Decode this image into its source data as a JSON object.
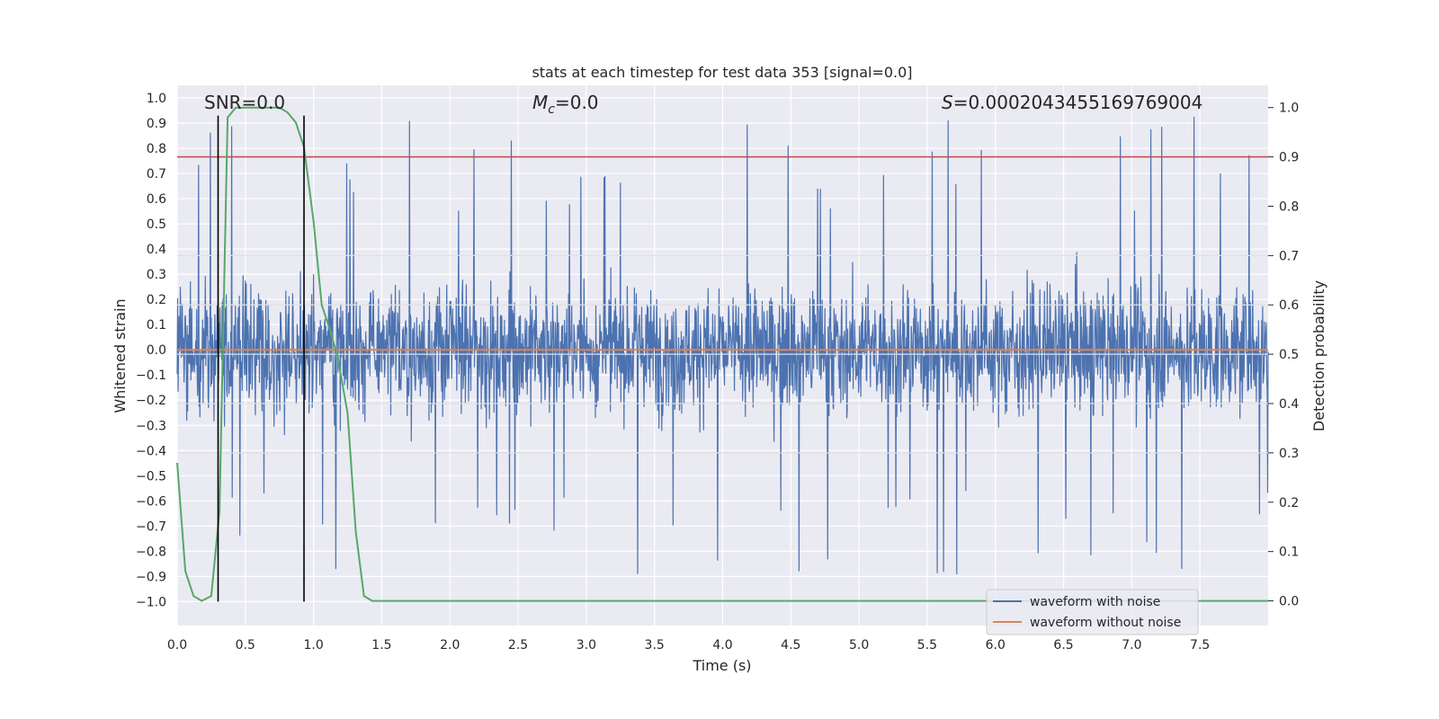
{
  "chart_data": {
    "type": "line",
    "title": "stats at each timestep for test data 353 [signal=0.0]",
    "xlabel": "Time (s)",
    "ylabel": "Whitened strain",
    "y2label": "Detection probability",
    "xlim": [
      0.0,
      8.0
    ],
    "ylim": [
      -1.095,
      1.05
    ],
    "y2lim": [
      -0.05,
      1.045
    ],
    "xticks": [
      "0.0",
      "0.5",
      "1.0",
      "1.5",
      "2.0",
      "2.5",
      "3.0",
      "3.5",
      "4.0",
      "4.5",
      "5.0",
      "5.5",
      "6.0",
      "6.5",
      "7.0",
      "7.5"
    ],
    "yticks": [
      "1.0",
      "0.9",
      "0.8",
      "0.7",
      "0.6",
      "0.5",
      "0.4",
      "0.3",
      "0.2",
      "0.1",
      "0.0",
      "-0.1",
      "-0.2",
      "-0.3",
      "-0.4",
      "-0.5",
      "-0.6",
      "-0.7",
      "-0.8",
      "-0.9",
      "-1.0"
    ],
    "y2ticks": [
      "1.0",
      "0.9",
      "0.8",
      "0.7",
      "0.6",
      "0.5",
      "0.4",
      "0.3",
      "0.2",
      "0.1",
      "0.0"
    ],
    "annotations": {
      "snr": "SNR=0.0",
      "mc_symbol": "M",
      "mc_sub": "c",
      "mc_value": "=0.0",
      "s_symbol": "S",
      "s_value": "=0.0002043455169769004"
    },
    "noise_envelope": {
      "typical_abs_max": 0.45,
      "max_peak": 0.94,
      "min_peak": -0.96
    },
    "series": [
      {
        "name": "waveform with noise",
        "color": "#4c72b0",
        "kind": "noise"
      },
      {
        "name": "waveform without noise",
        "color": "#dd8452",
        "x": [
          0.0,
          8.0
        ],
        "y": [
          0.0,
          0.0
        ]
      },
      {
        "color": "#55a868",
        "axis": "right",
        "x": [
          0.0,
          0.06,
          0.12,
          0.18,
          0.25,
          0.31,
          0.37,
          0.43,
          0.5,
          0.56,
          0.62,
          0.68,
          0.75,
          0.81,
          0.87,
          0.93,
          1.0,
          1.06,
          1.12,
          1.18,
          1.25,
          1.31,
          1.37,
          1.43,
          1.5,
          8.0
        ],
        "y": [
          0.28,
          0.06,
          0.01,
          0.0,
          0.01,
          0.18,
          0.98,
          1.0,
          1.0,
          1.0,
          1.0,
          1.0,
          1.0,
          0.99,
          0.97,
          0.92,
          0.77,
          0.6,
          0.55,
          0.49,
          0.38,
          0.14,
          0.01,
          0.0,
          0.0,
          0.0
        ]
      },
      {
        "color": "#e0e0e0",
        "axis": "right",
        "kind": "hlines",
        "y": [
          0.7,
          0.6,
          0.5,
          0.4,
          0.3
        ]
      },
      {
        "color": "#c44e52",
        "axis": "right",
        "kind": "hline",
        "y": 0.9
      },
      {
        "color": "#000000",
        "kind": "vlines",
        "x": [
          0.3,
          0.93
        ],
        "ymin": -1.0,
        "ymax": 0.93
      }
    ],
    "legend_position": "lower right"
  }
}
